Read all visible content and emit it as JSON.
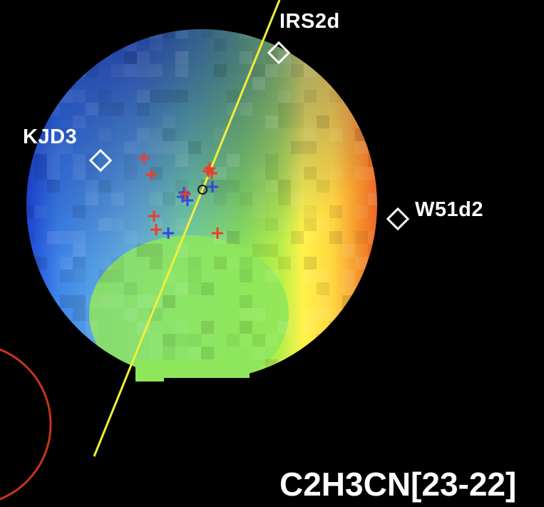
{
  "labels": {
    "irs2d": "IRS2d",
    "kjd3": "KJD3",
    "w51d2": "W51d2",
    "molecule": "C2H3CN[23-22]"
  },
  "colors": {
    "background": "#000000",
    "source_marker": "#ffffff",
    "axis_line": "#f5ee3a",
    "beam_circle": "#c8341e",
    "red_cross": "#e8402a",
    "blue_cross": "#2e4be0",
    "label_text": "#ffffff"
  },
  "markers": [
    {
      "name": "IRS2d",
      "shape": "diamond"
    },
    {
      "name": "KJD3",
      "shape": "diamond"
    },
    {
      "name": "W51d2",
      "shape": "diamond"
    }
  ]
}
